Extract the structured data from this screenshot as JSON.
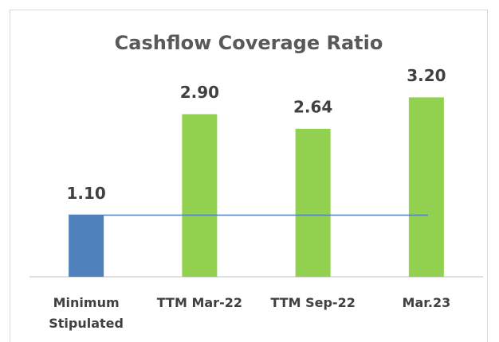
{
  "chart_data": {
    "type": "bar",
    "title": "Cashflow Coverage Ratio",
    "categories": [
      "Minimum Stipulated",
      "TTM Mar-22",
      "TTM Sep-22",
      "Mar.23"
    ],
    "values": [
      1.1,
      2.9,
      2.64,
      3.2
    ],
    "value_labels": [
      "1.10",
      "2.90",
      "2.64",
      "3.20"
    ],
    "colors": [
      "#4f81bd",
      "#92d050",
      "#92d050",
      "#92d050"
    ],
    "reference_line": 1.1,
    "reference_color": "#4f81bd",
    "ylim": [
      0,
      4
    ]
  }
}
